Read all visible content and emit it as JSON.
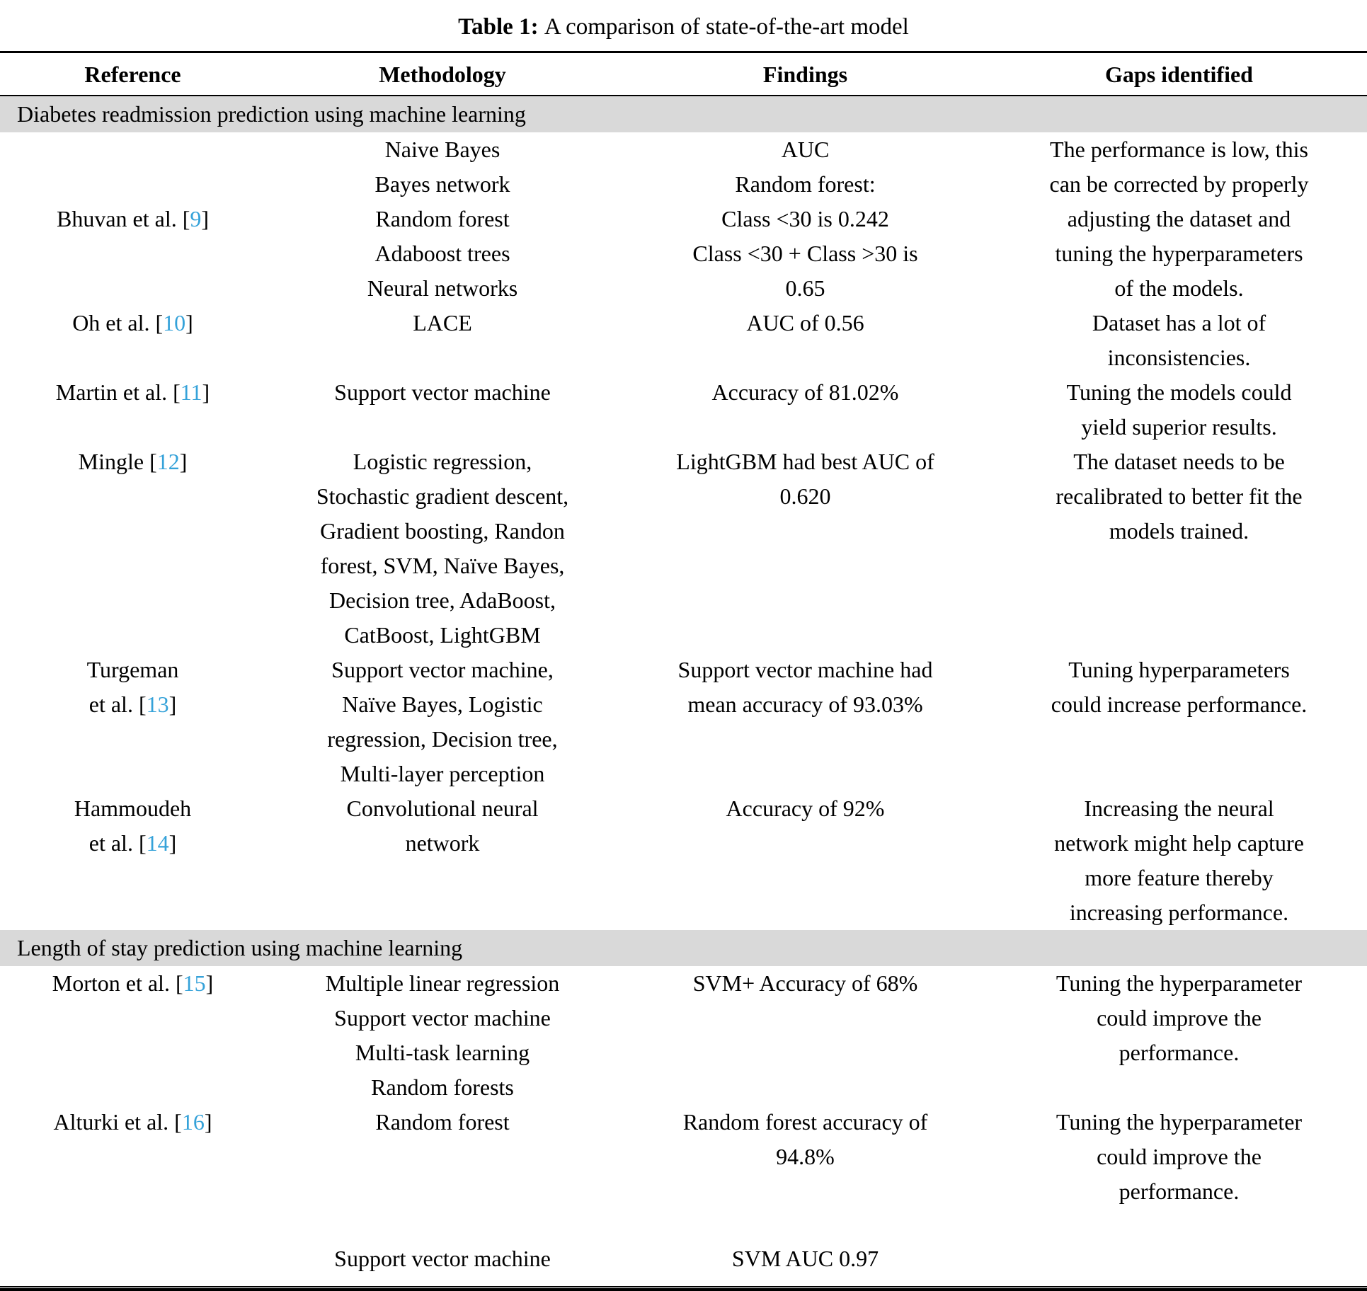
{
  "caption": {
    "label": "Table 1:",
    "text": "A comparison of state-of-the-art model"
  },
  "columns": [
    "Reference",
    "Methodology",
    "Findings",
    "Gaps identified"
  ],
  "accent": {
    "citation_color": "#35a2d9",
    "section_bg": "#d9d9d9"
  },
  "sections": [
    {
      "heading": "Diabetes readmission prediction using machine learning",
      "rows": [
        {
          "reference": [
            "Bhuvan et al. [9]"
          ],
          "ref_valign": "middle",
          "methodology": [
            "Naive Bayes",
            "Bayes network",
            "Random forest",
            "Adaboost trees",
            "Neural networks"
          ],
          "findings": [
            "AUC",
            "Random forest:",
            "Class <30 is 0.242",
            "Class <30 + Class >30 is",
            "0.65"
          ],
          "gaps": [
            "The performance is low, this",
            "can be corrected by properly",
            "adjusting the dataset and",
            "tuning the hyperparameters",
            "of the models."
          ]
        },
        {
          "reference": [
            "Oh et al. [10]"
          ],
          "methodology": [
            "LACE"
          ],
          "findings": [
            "AUC of 0.56"
          ],
          "gaps": [
            "Dataset has a lot of",
            "inconsistencies."
          ]
        },
        {
          "reference": [
            "Martin et al. [11]"
          ],
          "methodology": [
            "Support vector machine"
          ],
          "findings": [
            "Accuracy of 81.02%"
          ],
          "gaps": [
            "Tuning the models could",
            "yield superior results."
          ]
        },
        {
          "reference": [
            "Mingle [12]"
          ],
          "methodology": [
            "Logistic regression,",
            "Stochastic gradient descent,",
            "Gradient boosting, Randon",
            "forest, SVM, Naïve Bayes,",
            "Decision tree, AdaBoost,",
            "CatBoost, LightGBM"
          ],
          "findings": [
            "LightGBM had best AUC of",
            "0.620"
          ],
          "gaps": [
            "The dataset needs to be",
            "recalibrated to better fit the",
            "models trained."
          ]
        },
        {
          "reference": [
            "Turgeman",
            "et al. [13]"
          ],
          "methodology": [
            "Support vector machine,",
            "Naïve Bayes, Logistic",
            "regression, Decision tree,",
            "Multi-layer perception"
          ],
          "findings": [
            "Support vector machine had",
            "mean accuracy of 93.03%"
          ],
          "gaps": [
            "Tuning hyperparameters",
            "could increase performance."
          ]
        },
        {
          "reference": [
            "Hammoudeh",
            "et al. [14]"
          ],
          "methodology": [
            "Convolutional neural",
            "network"
          ],
          "findings": [
            "Accuracy of 92%"
          ],
          "gaps": [
            "Increasing the neural",
            "network might help capture",
            "more feature thereby",
            "increasing performance."
          ]
        }
      ]
    },
    {
      "heading": "Length of stay prediction using machine learning",
      "rows": [
        {
          "reference": [
            "Morton et al. [15]"
          ],
          "methodology": [
            "Multiple linear regression",
            "Support vector machine",
            "Multi-task learning",
            "Random forests"
          ],
          "findings": [
            "SVM+ Accuracy of 68%"
          ],
          "gaps": [
            "Tuning the hyperparameter",
            "could improve the",
            "performance."
          ]
        },
        {
          "reference": [
            "Alturki et al. [16]"
          ],
          "methodology": [
            "Random forest"
          ],
          "findings": [
            "Random forest accuracy of",
            "94.8%"
          ],
          "gaps": [
            "Tuning the hyperparameter",
            "could improve the",
            "performance."
          ]
        },
        {
          "reference": [],
          "spacer_top": true,
          "methodology": [
            "Support vector machine"
          ],
          "findings": [
            "SVM AUC 0.97"
          ],
          "gaps": []
        }
      ]
    }
  ]
}
